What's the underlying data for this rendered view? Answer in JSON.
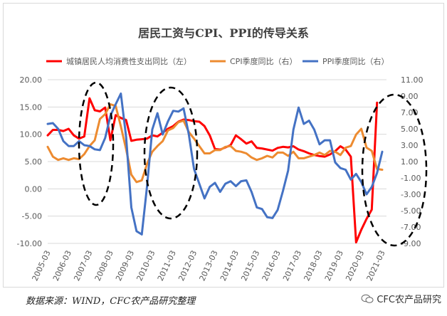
{
  "chart_data": {
    "type": "line",
    "title": "居民工资与CPI、PPI的传导关系",
    "x_tick_labels": [
      "2005-03",
      "2006-03",
      "2007-03",
      "2008-03",
      "2009-03",
      "2010-03",
      "2011-03",
      "2012-03",
      "2013-03",
      "2014-03",
      "2015-03",
      "2016-03",
      "2017-03",
      "2018-03",
      "2019-03",
      "2020-03",
      "2021-03"
    ],
    "x_start": "2005-03",
    "x_end": "2021-03",
    "y_left_ticks": [
      "20.00",
      "15.00",
      "10.00",
      "5.00",
      "0.00",
      "-5.00",
      "-10.00"
    ],
    "y_left_range": [
      -10,
      20
    ],
    "y_right_ticks": [
      "11.00",
      "9.00",
      "7.00",
      "5.00",
      "3.00",
      "1.00",
      "-1.00",
      "-3.00",
      "-5.00",
      "-7.00",
      "-9.00"
    ],
    "y_right_range": [
      -9,
      11
    ],
    "grid": "horizontal",
    "legend_position": "top",
    "series": [
      {
        "name": "城镇居民人均消费性支出同比（左）",
        "axis": "left",
        "color": "#ff0000",
        "values": [
          [
            "2005-03",
            9.8
          ],
          [
            "2005-06",
            10.8
          ],
          [
            "2005-09",
            10.8
          ],
          [
            "2005-12",
            10.6
          ],
          [
            "2006-03",
            11.0
          ],
          [
            "2006-06",
            9.8
          ],
          [
            "2006-09",
            9.2
          ],
          [
            "2006-12",
            9.6
          ],
          [
            "2007-03",
            16.6
          ],
          [
            "2007-06",
            14.4
          ],
          [
            "2007-09",
            14.2
          ],
          [
            "2007-12",
            14.9
          ],
          [
            "2008-03",
            8.9
          ],
          [
            "2008-06",
            13.5
          ],
          [
            "2008-09",
            13.0
          ],
          [
            "2008-12",
            12.6
          ],
          [
            "2009-03",
            8.8
          ],
          [
            "2009-06",
            9.0
          ],
          [
            "2009-09",
            9.1
          ],
          [
            "2009-12",
            9.2
          ],
          [
            "2010-03",
            9.8
          ],
          [
            "2010-06",
            9.6
          ],
          [
            "2010-09",
            10.3
          ],
          [
            "2010-12",
            11.0
          ],
          [
            "2011-03",
            11.5
          ],
          [
            "2011-06",
            12.3
          ],
          [
            "2011-09",
            12.7
          ],
          [
            "2011-12",
            12.6
          ],
          [
            "2012-03",
            12.4
          ],
          [
            "2012-06",
            12.3
          ],
          [
            "2012-09",
            11.5
          ],
          [
            "2012-12",
            9.8
          ],
          [
            "2013-03",
            7.3
          ],
          [
            "2013-06",
            7.2
          ],
          [
            "2013-09",
            7.6
          ],
          [
            "2013-12",
            8.0
          ],
          [
            "2014-03",
            9.8
          ],
          [
            "2014-06",
            9.1
          ],
          [
            "2014-09",
            8.3
          ],
          [
            "2014-12",
            8.7
          ],
          [
            "2015-03",
            7.5
          ],
          [
            "2015-06",
            7.4
          ],
          [
            "2015-09",
            7.2
          ],
          [
            "2015-12",
            7.0
          ],
          [
            "2016-03",
            7.5
          ],
          [
            "2016-06",
            7.7
          ],
          [
            "2016-09",
            7.6
          ],
          [
            "2016-12",
            7.8
          ],
          [
            "2017-03",
            7.2
          ],
          [
            "2017-06",
            6.9
          ],
          [
            "2017-09",
            6.5
          ],
          [
            "2017-12",
            6.2
          ],
          [
            "2018-03",
            6.0
          ],
          [
            "2018-06",
            5.9
          ],
          [
            "2018-09",
            6.3
          ],
          [
            "2018-12",
            6.9
          ],
          [
            "2019-03",
            7.8
          ],
          [
            "2019-06",
            7.2
          ],
          [
            "2019-09",
            5.9
          ],
          [
            "2019-12",
            -9.8
          ],
          [
            "2020-03",
            -7.5
          ],
          [
            "2020-06",
            -5.5
          ],
          [
            "2020-09",
            -3.8
          ],
          [
            "2020-12",
            15.8
          ]
        ]
      },
      {
        "name": "CPI季度同比（右）",
        "axis": "right",
        "color": "#ed8b30",
        "values": [
          [
            "2005-03",
            2.8
          ],
          [
            "2005-06",
            1.6
          ],
          [
            "2005-09",
            1.2
          ],
          [
            "2005-12",
            1.4
          ],
          [
            "2006-03",
            1.2
          ],
          [
            "2006-06",
            1.4
          ],
          [
            "2006-09",
            1.3
          ],
          [
            "2006-12",
            1.9
          ],
          [
            "2007-03",
            2.9
          ],
          [
            "2007-06",
            3.6
          ],
          [
            "2007-09",
            6.2
          ],
          [
            "2007-12",
            6.8
          ],
          [
            "2008-03",
            8.0
          ],
          [
            "2008-06",
            7.8
          ],
          [
            "2008-09",
            5.3
          ],
          [
            "2008-12",
            2.5
          ],
          [
            "2009-03",
            -0.6
          ],
          [
            "2009-06",
            -1.5
          ],
          [
            "2009-09",
            -1.3
          ],
          [
            "2009-12",
            0.7
          ],
          [
            "2010-03",
            2.2
          ],
          [
            "2010-06",
            2.9
          ],
          [
            "2010-09",
            3.5
          ],
          [
            "2010-12",
            4.8
          ],
          [
            "2011-03",
            5.1
          ],
          [
            "2011-06",
            5.8
          ],
          [
            "2011-09",
            6.0
          ],
          [
            "2011-12",
            4.6
          ],
          [
            "2012-03",
            3.8
          ],
          [
            "2012-06",
            2.9
          ],
          [
            "2012-09",
            2.0
          ],
          [
            "2012-12",
            2.0
          ],
          [
            "2013-03",
            2.4
          ],
          [
            "2013-06",
            2.4
          ],
          [
            "2013-09",
            2.8
          ],
          [
            "2013-12",
            2.9
          ],
          [
            "2014-03",
            2.3
          ],
          [
            "2014-06",
            2.2
          ],
          [
            "2014-09",
            2.0
          ],
          [
            "2014-12",
            1.5
          ],
          [
            "2015-03",
            1.2
          ],
          [
            "2015-06",
            1.4
          ],
          [
            "2015-09",
            1.7
          ],
          [
            "2015-12",
            1.5
          ],
          [
            "2016-03",
            2.1
          ],
          [
            "2016-06",
            2.1
          ],
          [
            "2016-09",
            1.7
          ],
          [
            "2016-12",
            2.2
          ],
          [
            "2017-03",
            1.4
          ],
          [
            "2017-06",
            1.4
          ],
          [
            "2017-09",
            1.6
          ],
          [
            "2017-12",
            1.8
          ],
          [
            "2018-03",
            2.1
          ],
          [
            "2018-06",
            1.8
          ],
          [
            "2018-09",
            2.3
          ],
          [
            "2018-12",
            2.2
          ],
          [
            "2019-03",
            1.8
          ],
          [
            "2019-06",
            2.7
          ],
          [
            "2019-09",
            2.9
          ],
          [
            "2019-12",
            4.3
          ],
          [
            "2020-03",
            5.0
          ],
          [
            "2020-06",
            2.7
          ],
          [
            "2020-09",
            2.3
          ],
          [
            "2020-12",
            0.1
          ],
          [
            "2021-03",
            0.0
          ]
        ]
      },
      {
        "name": "PPI季度同比（右）",
        "axis": "right",
        "color": "#4472c4",
        "values": [
          [
            "2005-03",
            5.6
          ],
          [
            "2005-06",
            5.7
          ],
          [
            "2005-09",
            5.0
          ],
          [
            "2005-12",
            3.5
          ],
          [
            "2006-03",
            2.9
          ],
          [
            "2006-06",
            2.9
          ],
          [
            "2006-09",
            3.5
          ],
          [
            "2006-12",
            3.0
          ],
          [
            "2007-03",
            2.9
          ],
          [
            "2007-06",
            2.5
          ],
          [
            "2007-09",
            2.4
          ],
          [
            "2007-12",
            3.9
          ],
          [
            "2008-03",
            6.6
          ],
          [
            "2008-06",
            8.0
          ],
          [
            "2008-09",
            9.3
          ],
          [
            "2008-12",
            4.0
          ],
          [
            "2009-03",
            -4.6
          ],
          [
            "2009-06",
            -7.5
          ],
          [
            "2009-09",
            -7.9
          ],
          [
            "2009-12",
            -2.1
          ],
          [
            "2010-03",
            4.9
          ],
          [
            "2010-06",
            6.9
          ],
          [
            "2010-09",
            4.3
          ],
          [
            "2010-12",
            5.9
          ],
          [
            "2011-03",
            7.2
          ],
          [
            "2011-06",
            7.1
          ],
          [
            "2011-09",
            7.5
          ],
          [
            "2011-12",
            4.3
          ],
          [
            "2012-03",
            0.1
          ],
          [
            "2012-06",
            -1.7
          ],
          [
            "2012-09",
            -3.5
          ],
          [
            "2012-12",
            -2.1
          ],
          [
            "2013-03",
            -1.6
          ],
          [
            "2013-06",
            -2.7
          ],
          [
            "2013-09",
            -1.7
          ],
          [
            "2013-12",
            -1.4
          ],
          [
            "2014-03",
            -2.0
          ],
          [
            "2014-06",
            -1.4
          ],
          [
            "2014-09",
            -1.3
          ],
          [
            "2014-12",
            -2.7
          ],
          [
            "2015-03",
            -4.6
          ],
          [
            "2015-06",
            -4.8
          ],
          [
            "2015-09",
            -5.8
          ],
          [
            "2015-12",
            -5.9
          ],
          [
            "2016-03",
            -4.9
          ],
          [
            "2016-06",
            -2.6
          ],
          [
            "2016-09",
            -0.1
          ],
          [
            "2016-12",
            4.9
          ],
          [
            "2017-03",
            7.6
          ],
          [
            "2017-06",
            5.6
          ],
          [
            "2017-09",
            6.0
          ],
          [
            "2017-12",
            4.9
          ],
          [
            "2018-03",
            3.1
          ],
          [
            "2018-06",
            3.6
          ],
          [
            "2018-09",
            3.6
          ],
          [
            "2018-12",
            0.9
          ],
          [
            "2019-03",
            0.2
          ],
          [
            "2019-06",
            0.0
          ],
          [
            "2019-09",
            -1.2
          ],
          [
            "2019-12",
            -0.5
          ],
          [
            "2020-03",
            -1.5
          ],
          [
            "2020-06",
            -3.0
          ],
          [
            "2020-09",
            -2.1
          ],
          [
            "2020-12",
            -0.4
          ],
          [
            "2021-03",
            2.2
          ]
        ]
      }
    ]
  },
  "footer": {
    "source_note": "数据来源：WIND，CFC农产品研究整理",
    "watermark": "CFC农产品研究"
  }
}
